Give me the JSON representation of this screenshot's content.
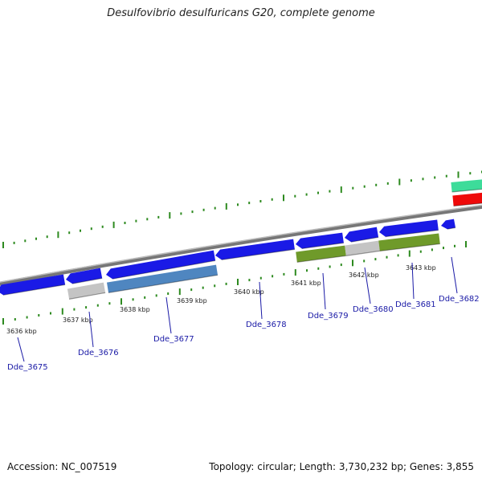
{
  "map": {
    "title": "Desulfovibrio desulfuricans G20, complete genome"
  },
  "footer": {
    "accession_label": "Accession:",
    "accession": "NC_007519",
    "topology_label": "Topology:",
    "topology": "circular",
    "length_label": "Length:",
    "length": "3,730,232 bp",
    "genes_label": "Genes:",
    "genes": "3,855"
  },
  "colors": {
    "backbone": "#8a8a8a",
    "tick": "#2d8a1f",
    "forward_cds": "#1414f0",
    "gene_blue": "#1a1ae6",
    "gene_steelblue": "#4f86c0",
    "gene_olive": "#6f9a2a",
    "gene_gray": "#c4c4c4",
    "gene_teal": "#3ddc9a",
    "gene_red": "#ee0a0a",
    "gene_label": "#1a1aa6"
  },
  "scale_labels": [
    "3636 kbp",
    "3637 kbp",
    "3638 kbp",
    "3639 kbp",
    "3640 kbp",
    "3641 kbp",
    "3642 kbp",
    "3643 kbp"
  ],
  "gene_labels": [
    "Dde_3675",
    "Dde_3676",
    "Dde_3677",
    "Dde_3678",
    "Dde_3679",
    "Dde_3680",
    "Dde_3681",
    "Dde_3682"
  ]
}
